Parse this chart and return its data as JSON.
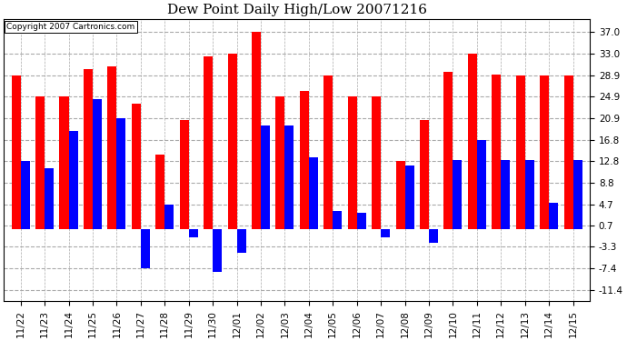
{
  "title": "Dew Point Daily High/Low 20071216",
  "copyright": "Copyright 2007 Cartronics.com",
  "categories": [
    "11/22",
    "11/23",
    "11/24",
    "11/25",
    "11/26",
    "11/27",
    "11/28",
    "11/29",
    "11/30",
    "12/01",
    "12/02",
    "12/03",
    "12/04",
    "12/05",
    "12/06",
    "12/07",
    "12/08",
    "12/09",
    "12/10",
    "12/11",
    "12/12",
    "12/13",
    "12/14",
    "12/15"
  ],
  "highs": [
    28.9,
    25.0,
    25.0,
    30.0,
    30.5,
    23.5,
    14.0,
    20.5,
    32.5,
    33.0,
    37.0,
    25.0,
    26.0,
    28.9,
    25.0,
    25.0,
    12.8,
    20.5,
    29.5,
    33.0,
    29.0,
    28.9,
    28.9,
    28.9
  ],
  "lows": [
    12.8,
    11.5,
    18.5,
    24.5,
    20.8,
    -7.4,
    4.7,
    -1.5,
    -8.0,
    -4.5,
    19.5,
    19.5,
    13.5,
    3.5,
    3.0,
    -1.5,
    12.0,
    -2.5,
    13.0,
    16.8,
    13.0,
    13.0,
    5.0,
    13.0
  ],
  "high_color": "#ff0000",
  "low_color": "#0000ff",
  "bg_color": "#ffffff",
  "plot_bg_color": "#ffffff",
  "grid_color": "#aaaaaa",
  "yticks": [
    37.0,
    33.0,
    28.9,
    24.9,
    20.9,
    16.8,
    12.8,
    8.8,
    4.7,
    0.7,
    -3.3,
    -7.4,
    -11.4
  ],
  "ylim": [
    -13.5,
    39.5
  ],
  "bar_width": 0.38,
  "title_fontsize": 11,
  "tick_fontsize": 7.5
}
